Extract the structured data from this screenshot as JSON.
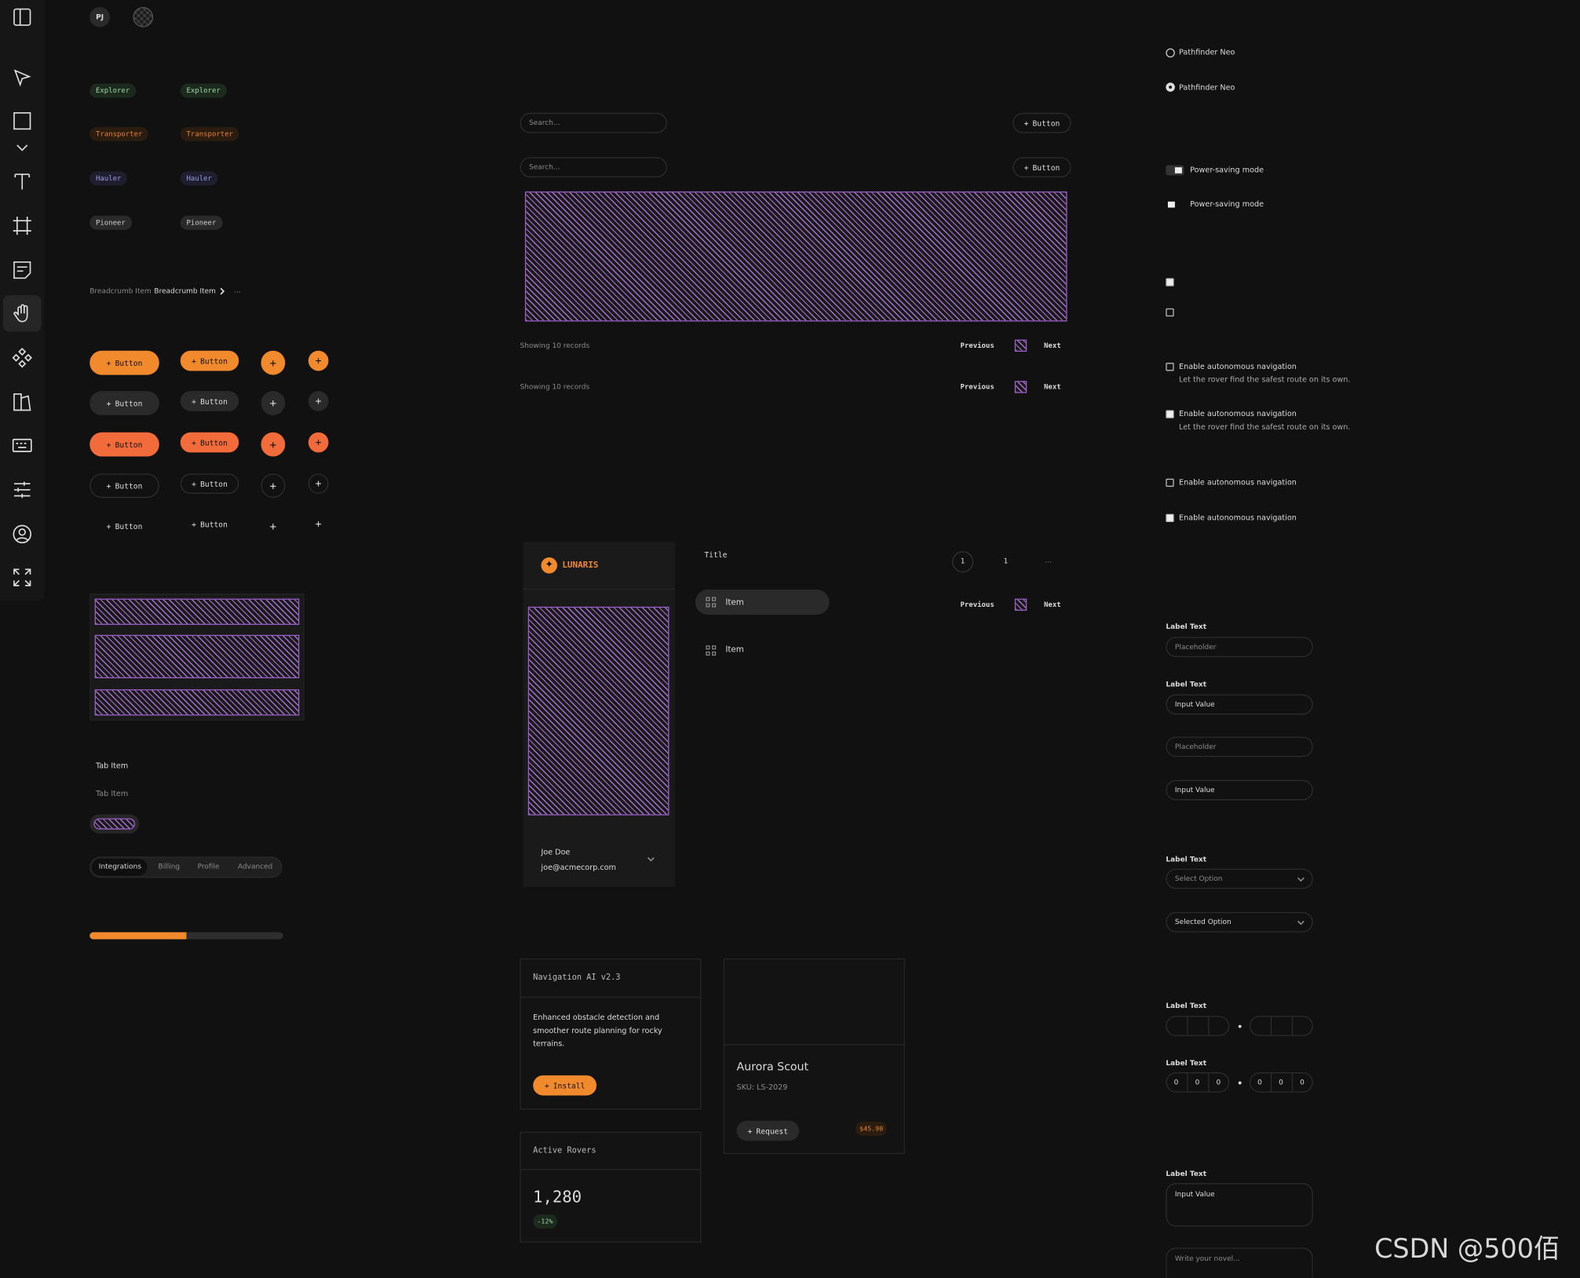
{
  "avatar": "PJ",
  "badges_icon": [
    "Explorer",
    "Transporter",
    "Hauler",
    "Pioneer"
  ],
  "badges_plain": [
    "Explorer",
    "Transporter",
    "Hauler",
    "Pioneer"
  ],
  "breadcrumb": [
    "Breadcrumb Item",
    "Breadcrumb Item",
    "…"
  ],
  "button_grid": [
    [
      "Button",
      "Button"
    ],
    [
      "Button",
      "Button"
    ],
    [
      "Button",
      "Button"
    ],
    [
      "Button",
      "Button"
    ],
    [
      "Button",
      "Button"
    ]
  ],
  "tabs": [
    "Tab Item",
    "Tab Item"
  ],
  "segmented": [
    "Integrations",
    "Billing",
    "Profile",
    "Advanced"
  ],
  "toolbars": [
    {
      "search": "Search...",
      "button": "Button"
    },
    {
      "search": "Search...",
      "button": "Button"
    }
  ],
  "footers": [
    {
      "count": "Showing 10 records",
      "prev": "Previous",
      "next": "Next"
    },
    {
      "count": "Showing 10 records",
      "prev": "Previous",
      "next": "Next"
    }
  ],
  "sidebar": {
    "brand": "LUNARIS",
    "user": "Joe Doe",
    "email": "joe@acmecorp.com"
  },
  "nav": {
    "title": "Title",
    "items": [
      "Item",
      "Item"
    ],
    "pages": [
      "1",
      "1",
      "…"
    ],
    "prev": "Previous",
    "next": "Next"
  },
  "card_nav": {
    "title": "Navigation AI v2.3",
    "text": "Enhanced obstacle detection and smoother route planning for rocky terrains.",
    "button": "Install"
  },
  "card_stat": {
    "title": "Active Rovers",
    "value": "1,280",
    "delta": "-12%"
  },
  "card_product": {
    "title": "Aurora Scout",
    "sku": "SKU: LS-2029",
    "button": "Request",
    "price": "$45.90"
  },
  "radios": [
    "Pathfinder Neo",
    "Pathfinder Neo"
  ],
  "toggles": [
    "Power-saving mode",
    "Power-saving mode"
  ],
  "checks": [
    {
      "label": "Enable autonomous navigation",
      "description": "Let the rover find the safest route on its own."
    },
    {
      "label": "Enable autonomous navigation",
      "description": "Let the rover find the safest route on its own."
    },
    {
      "label": "Enable autonomous navigation"
    },
    {
      "label": "Enable autonomous navigation"
    }
  ],
  "fields": {
    "labels": [
      "Label Text",
      "Label Text",
      "Label Text",
      "Label Text",
      "Label Text",
      "Label Text"
    ],
    "inputs": [
      "Placeholder",
      "Input Value",
      "Placeholder",
      "Input Value"
    ],
    "selects": [
      "Select Option",
      "Selected Option"
    ],
    "otp": [
      "0",
      "0",
      "0",
      "0",
      "0",
      "0"
    ],
    "textareas": [
      "Input Value",
      "Write your novel..."
    ]
  },
  "watermark": "CSDN @500佰"
}
